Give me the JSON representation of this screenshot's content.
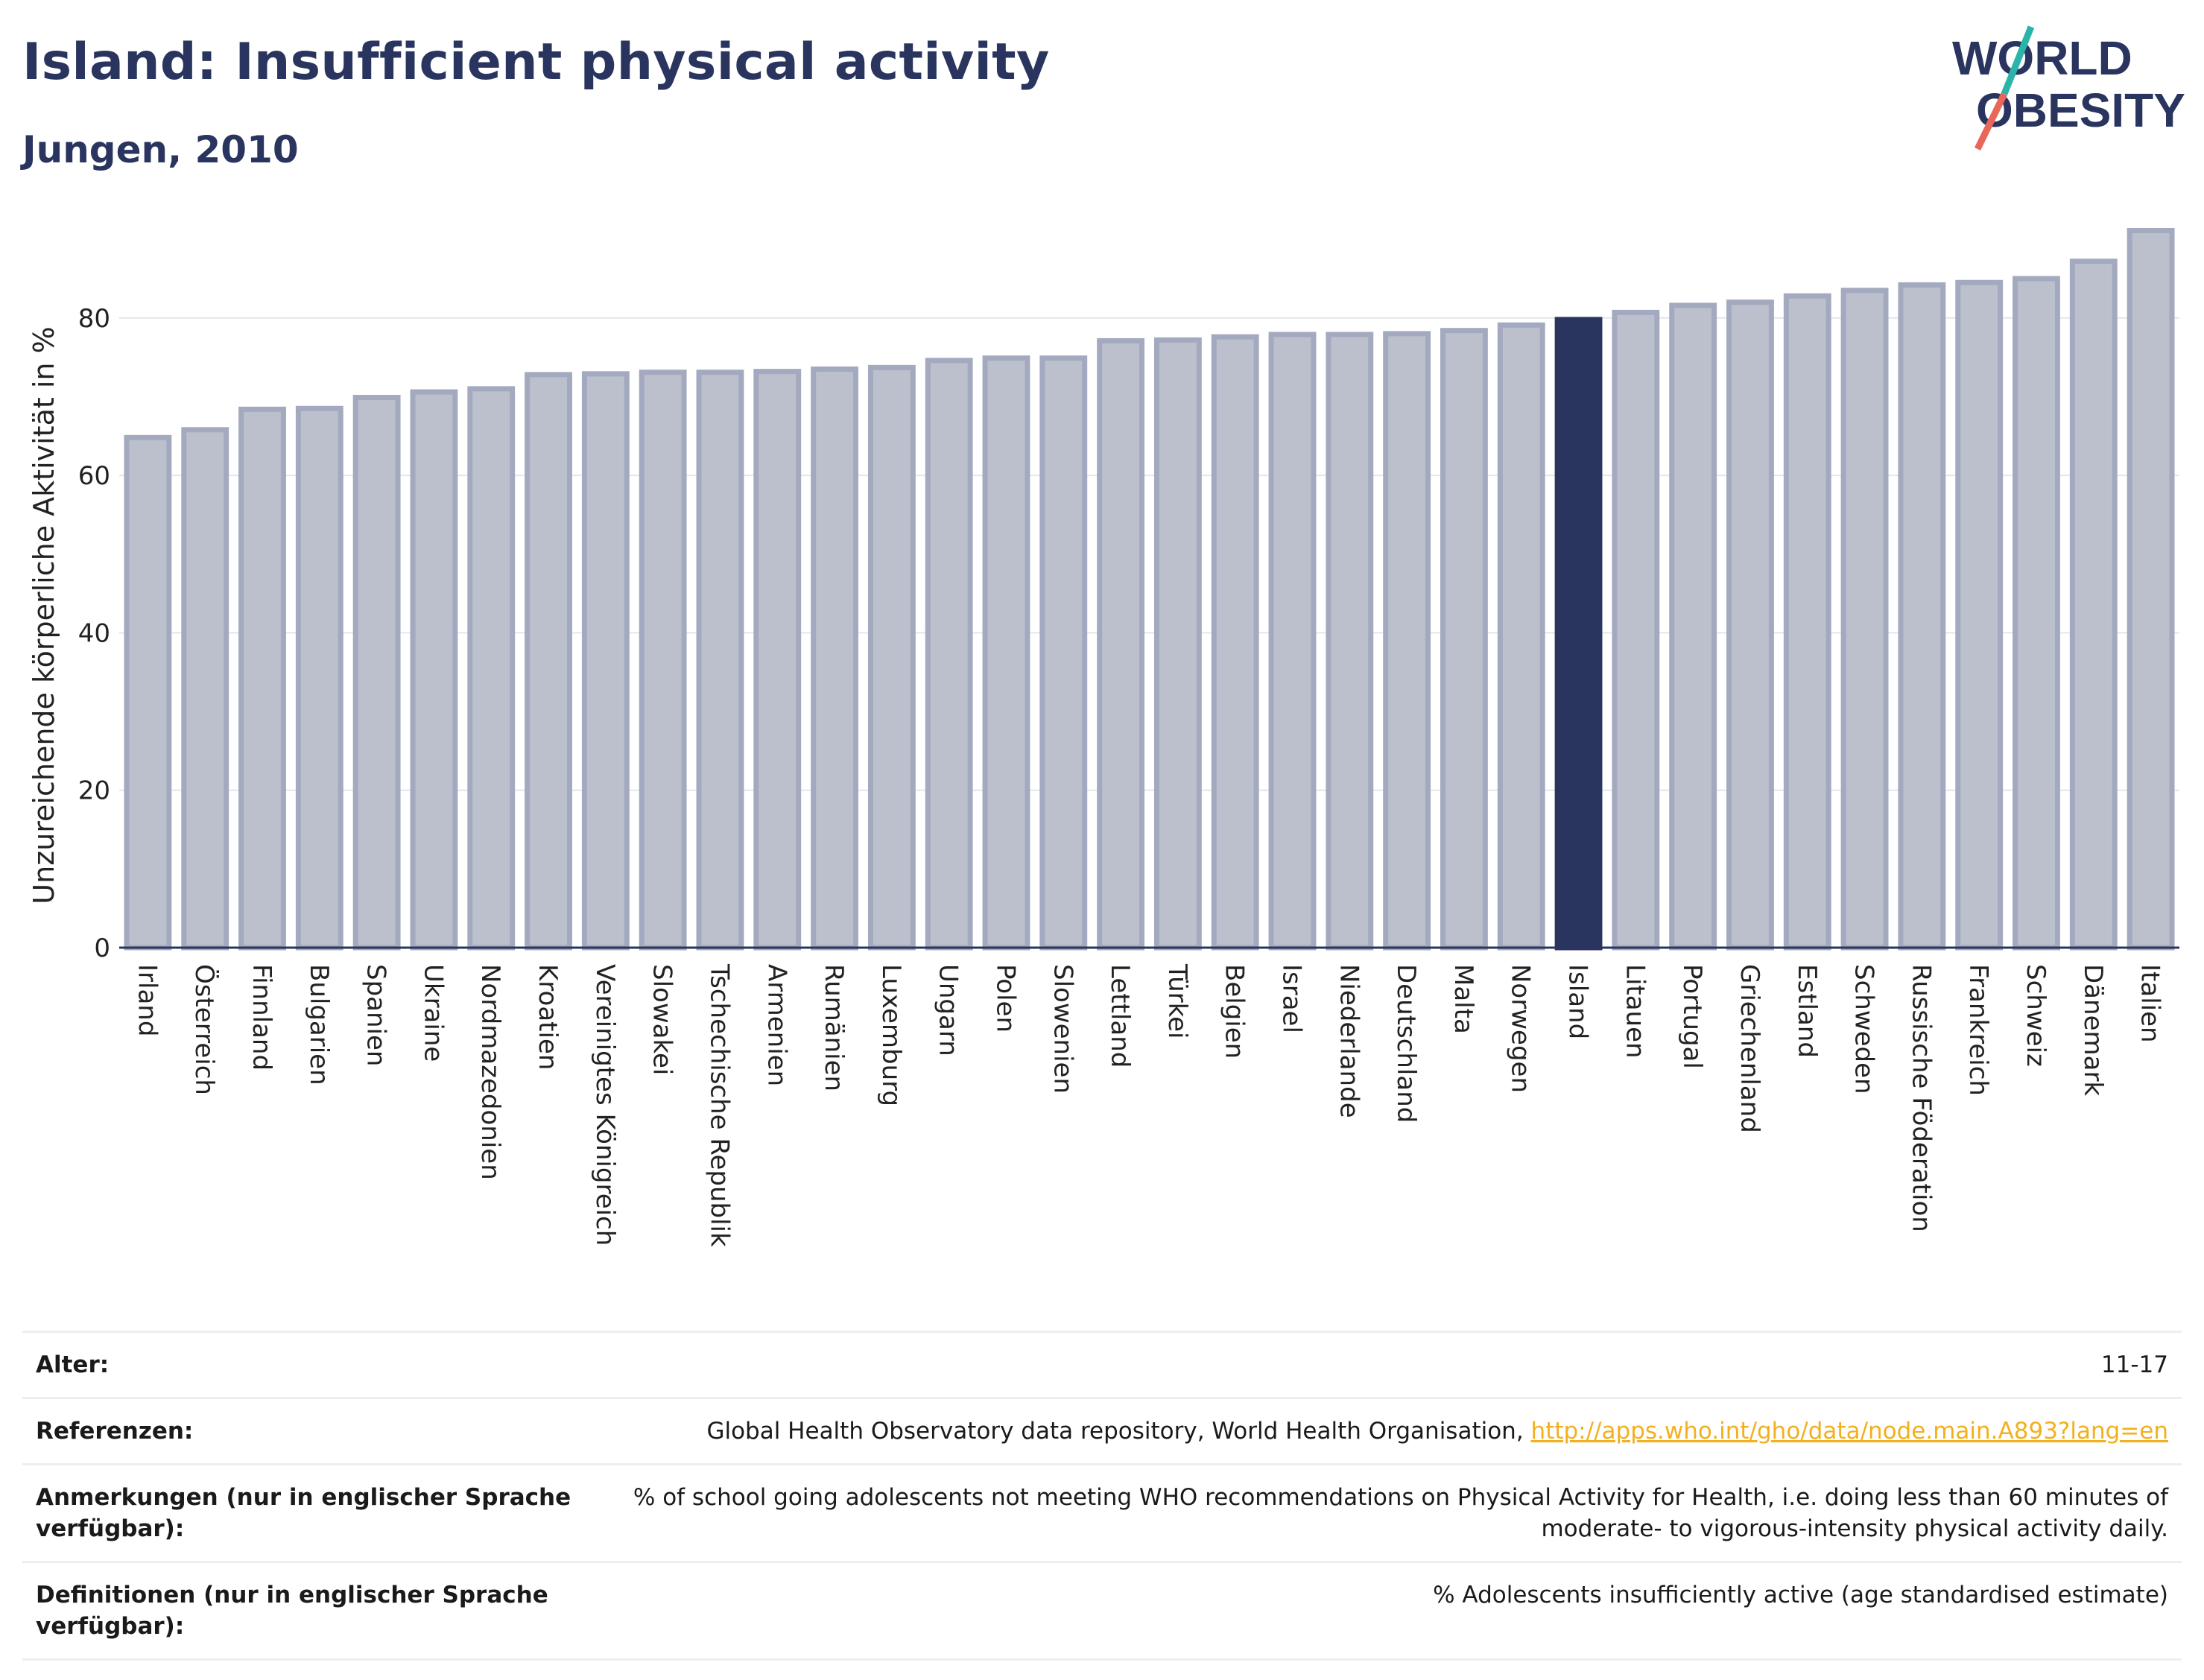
{
  "header": {
    "title": "Island: Insufficient physical activity",
    "subtitle": "Jungen, 2010"
  },
  "logo": {
    "line1": "WORLD",
    "line2": "OBESITY"
  },
  "colors": {
    "bar": "#bcc0cc",
    "bar_border": "#a3a9bf",
    "highlight": "#2a355f"
  },
  "chart_data": {
    "type": "bar",
    "ylabel": "Unzureichende körperliche Aktivität in %",
    "ylim": [
      0,
      92
    ],
    "yticks": [
      0,
      20,
      40,
      60,
      80
    ],
    "grid": true,
    "highlight": "Island",
    "categories": [
      "Irland",
      "Österreich",
      "Finnland",
      "Bulgarien",
      "Spanien",
      "Ukraine",
      "Nordmazedonien",
      "Kroatien",
      "Vereinigtes Königreich",
      "Slowakei",
      "Tschechische Republik",
      "Armenien",
      "Rumänien",
      "Luxemburg",
      "Ungarn",
      "Polen",
      "Slowenien",
      "Lettland",
      "Türkei",
      "Belgien",
      "Israel",
      "Niederlande",
      "Deutschland",
      "Malta",
      "Norwegen",
      "Island",
      "Litauen",
      "Portugal",
      "Griechenland",
      "Estland",
      "Schweden",
      "Russische Föderation",
      "Frankreich",
      "Schweiz",
      "Dänemark",
      "Italien"
    ],
    "values": [
      64.8,
      65.8,
      68.4,
      68.5,
      69.9,
      70.6,
      71.0,
      72.8,
      72.9,
      73.1,
      73.1,
      73.2,
      73.5,
      73.7,
      74.6,
      74.9,
      74.9,
      77.1,
      77.2,
      77.6,
      77.9,
      77.9,
      78.0,
      78.4,
      79.1,
      79.8,
      80.7,
      81.6,
      82.0,
      82.8,
      83.5,
      84.2,
      84.5,
      85.0,
      87.2,
      91.1
    ]
  },
  "info": {
    "age_label": "Alter:",
    "age_value": "11-17",
    "ref_label": "Referenzen:",
    "ref_text": "Global Health Observatory data repository, World Health Organisation, ",
    "ref_link": "http://apps.who.int/gho/data/node.main.A893?lang=en",
    "notes_label": "Anmerkungen (nur in englischer Sprache verfügbar):",
    "notes_value": "% of school going adolescents not meeting WHO recommendations on Physical Activity for Health, i.e. doing less than 60 minutes of moderate- to vigorous-intensity physical activity daily.",
    "def_label": "Definitionen (nur in englischer Sprache verfügbar):",
    "def_value": "% Adolescents insufficiently active (age standardised estimate)"
  }
}
